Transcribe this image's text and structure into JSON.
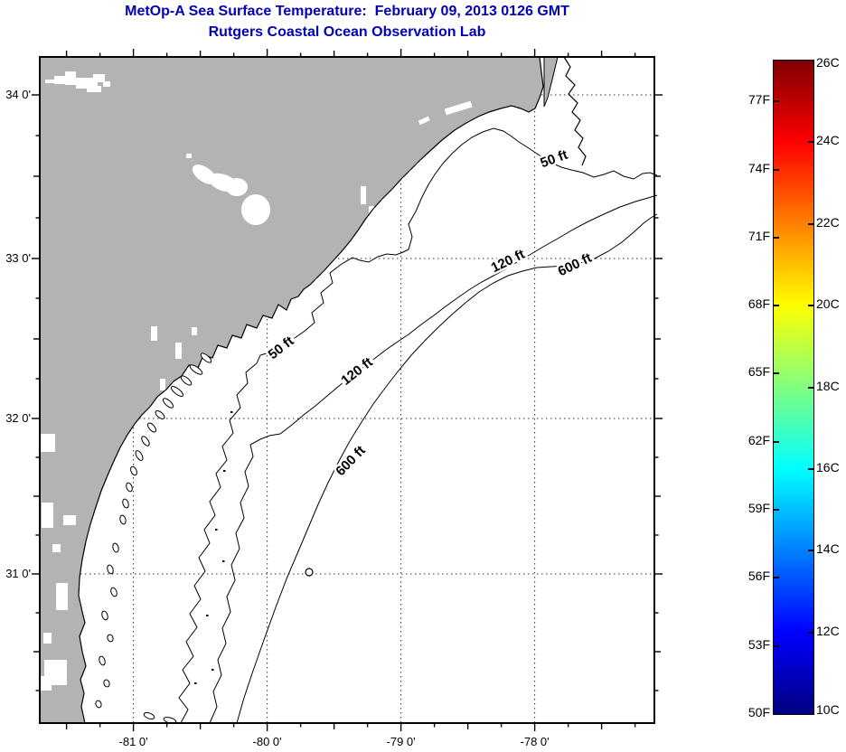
{
  "title": {
    "line1": "MetOp-A Sea Surface Temperature:  February 09, 2013 0126 GMT",
    "line2": "Rutgers Coastal Ocean Observation Lab",
    "color": "#0000BB"
  },
  "map": {
    "x_axis_ticks": [
      "-81 0'",
      "-80 0'",
      "-79 0'",
      "-78 0'"
    ],
    "y_axis_ticks": [
      "34 0'",
      "33 0'",
      "32 0'",
      "31 0'"
    ],
    "contour_labels": [
      "50 ft",
      "120 ft",
      "600 ft",
      "50 ft",
      "120 ft",
      "600 ft"
    ],
    "colors": {
      "land": "#b3b3b3",
      "ocean": "#ffffff",
      "cloud": "#ffffff",
      "coastline": "#000000",
      "contour": "#000000",
      "grid": "#333333"
    }
  },
  "colorbar": {
    "fahrenheit_labels": [
      "77F",
      "74F",
      "71F",
      "68F",
      "65F",
      "62F",
      "59F",
      "56F",
      "53F",
      "50F"
    ],
    "celsius_labels": [
      "26C",
      "24C",
      "22C",
      "20C",
      "18C",
      "16C",
      "14C",
      "12C",
      "10C"
    ],
    "scale": {
      "min_c": 10,
      "max_c": 26,
      "min_f": 50,
      "colormap": "jet"
    }
  }
}
